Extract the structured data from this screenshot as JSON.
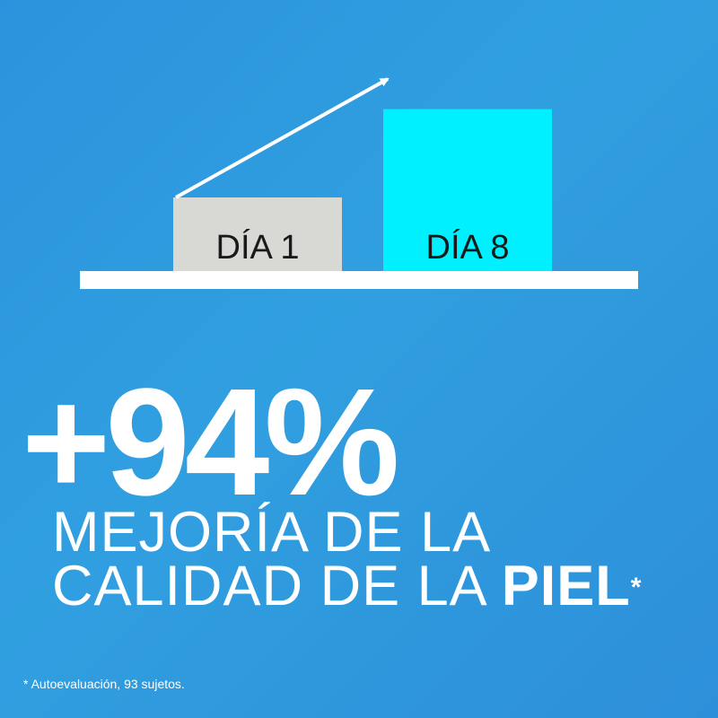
{
  "colors": {
    "background": "#2f9be0",
    "bar_day1": "#d8d8d4",
    "bar_day8": "#00f0ff",
    "baseline": "#ffffff",
    "arrow": "#ffffff",
    "text": "#ffffff",
    "bar_label_text": "#1a1a1a"
  },
  "chart_data": {
    "type": "bar",
    "categories": [
      "DÍA 1",
      "DÍA 8"
    ],
    "values": [
      1,
      2.2
    ],
    "title": "",
    "xlabel": "",
    "ylabel": "",
    "grid": false,
    "legend": "none",
    "annotation": "arrow rising from DÍA 1 bar to DÍA 8 bar"
  },
  "headline": {
    "value": "+94%",
    "line1": "MEJORÍA DE LA",
    "line2_prefix": "CALIDAD DE LA ",
    "line2_emphasis": "PIEL",
    "marker": "*"
  },
  "footnote": "* Autoevaluación, 93 sujetos."
}
